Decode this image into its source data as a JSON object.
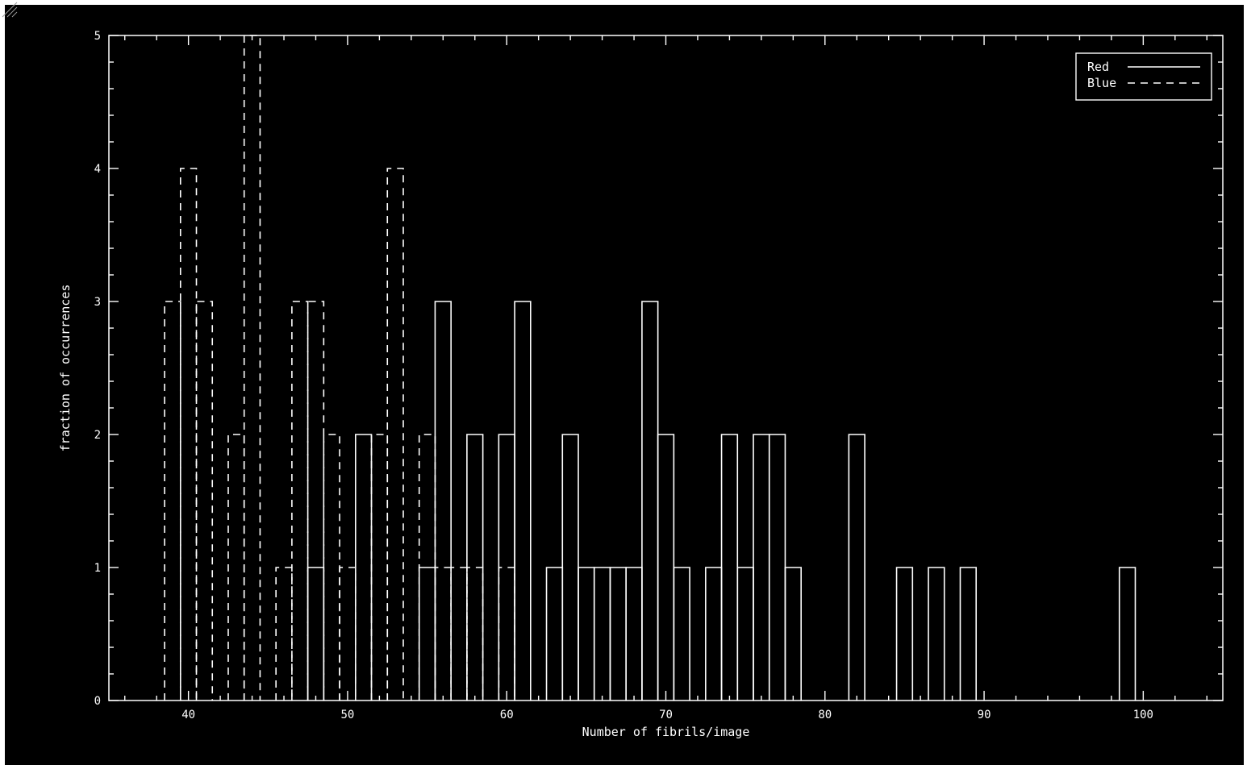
{
  "chart_data": {
    "type": "bar",
    "style": "step-histogram",
    "title": "",
    "xlabel": "Number of fibrils/image",
    "ylabel": "fraction of occurrences",
    "xlim": [
      35,
      105
    ],
    "ylim": [
      0,
      5
    ],
    "x_ticks": [
      "40",
      "50",
      "60",
      "70",
      "80",
      "90",
      "100"
    ],
    "y_ticks": [
      "0",
      "1",
      "2",
      "3",
      "4",
      "5"
    ],
    "legend_position": "top-right",
    "background_color": "#000000",
    "foreground_color": "#ffffff",
    "grid": false,
    "bin_width": 1,
    "series": [
      {
        "name": "Red",
        "line_style": "solid",
        "x": [
          48,
          51,
          55,
          56,
          58,
          60,
          61,
          63,
          64,
          65,
          66,
          67,
          68,
          69,
          70,
          71,
          73,
          74,
          75,
          76,
          77,
          78,
          82,
          85,
          87,
          89,
          99
        ],
        "values": [
          1,
          2,
          1,
          3,
          2,
          2,
          3,
          1,
          2,
          1,
          1,
          1,
          1,
          3,
          2,
          1,
          1,
          2,
          1,
          2,
          2,
          1,
          2,
          1,
          1,
          1,
          1
        ]
      },
      {
        "name": "Blue",
        "line_style": "dashed",
        "x": [
          39,
          40,
          41,
          43,
          44,
          46,
          47,
          48,
          49,
          50,
          52,
          53,
          55,
          56,
          57,
          58,
          60
        ],
        "values": [
          3,
          4,
          3,
          2,
          5,
          1,
          3,
          3,
          2,
          1,
          2,
          4,
          2,
          1,
          1,
          1,
          1
        ]
      }
    ]
  }
}
